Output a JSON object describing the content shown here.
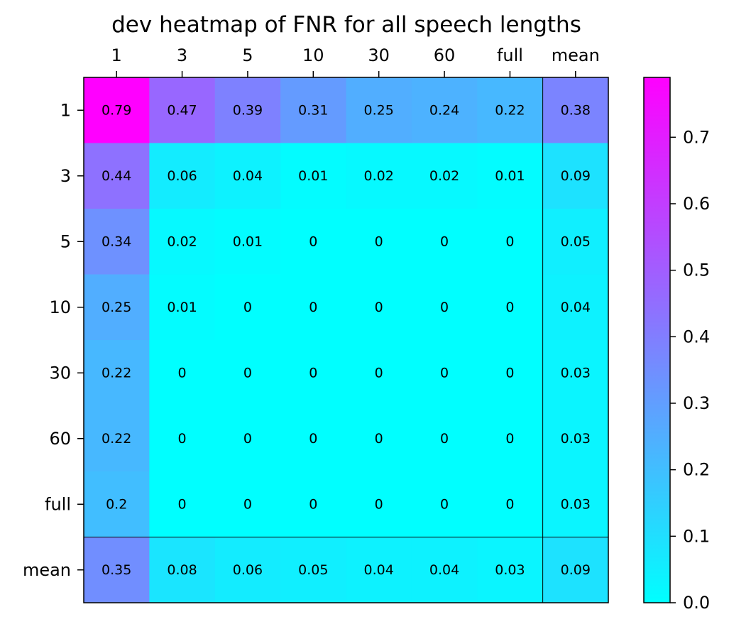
{
  "chart_data": {
    "type": "heatmap",
    "title": "dev heatmap of FNR for all speech lengths",
    "x_categories": [
      "1",
      "3",
      "5",
      "10",
      "30",
      "60",
      "full",
      "mean"
    ],
    "y_categories": [
      "1",
      "3",
      "5",
      "10",
      "30",
      "60",
      "full",
      "mean"
    ],
    "values": [
      [
        0.79,
        0.47,
        0.39,
        0.31,
        0.25,
        0.24,
        0.22,
        0.38
      ],
      [
        0.44,
        0.06,
        0.04,
        0.01,
        0.02,
        0.02,
        0.01,
        0.09
      ],
      [
        0.34,
        0.02,
        0.01,
        0.0,
        0.0,
        0.0,
        0.0,
        0.05
      ],
      [
        0.25,
        0.01,
        0.0,
        0.0,
        0.0,
        0.0,
        0.0,
        0.04
      ],
      [
        0.22,
        0.0,
        0.0,
        0.0,
        0.0,
        0.0,
        0.0,
        0.03
      ],
      [
        0.22,
        0.0,
        0.0,
        0.0,
        0.0,
        0.0,
        0.0,
        0.03
      ],
      [
        0.2,
        0.0,
        0.0,
        0.0,
        0.0,
        0.0,
        0.0,
        0.03
      ],
      [
        0.35,
        0.08,
        0.06,
        0.05,
        0.04,
        0.04,
        0.03,
        0.09
      ]
    ],
    "colormap": "cool",
    "colorbar": {
      "min": 0.0,
      "max": 0.79,
      "ticks": [
        "0.0",
        "0.1",
        "0.2",
        "0.3",
        "0.4",
        "0.5",
        "0.6",
        "0.7"
      ],
      "low_color": "#00ffff",
      "high_color": "#ff00ff"
    },
    "x_axis_position": "top",
    "grid": false
  }
}
